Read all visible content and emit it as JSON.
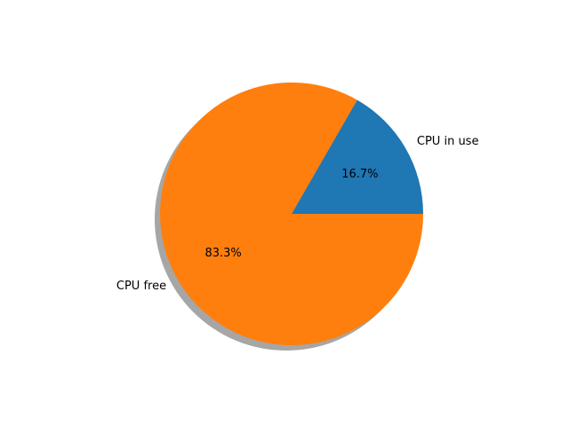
{
  "chart_data": {
    "type": "pie",
    "categories": [
      "CPU in use",
      "CPU free"
    ],
    "values": [
      16.7,
      83.3
    ],
    "percent_labels": [
      "16.7%",
      "83.3%"
    ],
    "colors": [
      "#1f77b4",
      "#ff7f0e"
    ],
    "shadow": true,
    "start_angle_deg": 0,
    "direction": "counterclockwise"
  }
}
